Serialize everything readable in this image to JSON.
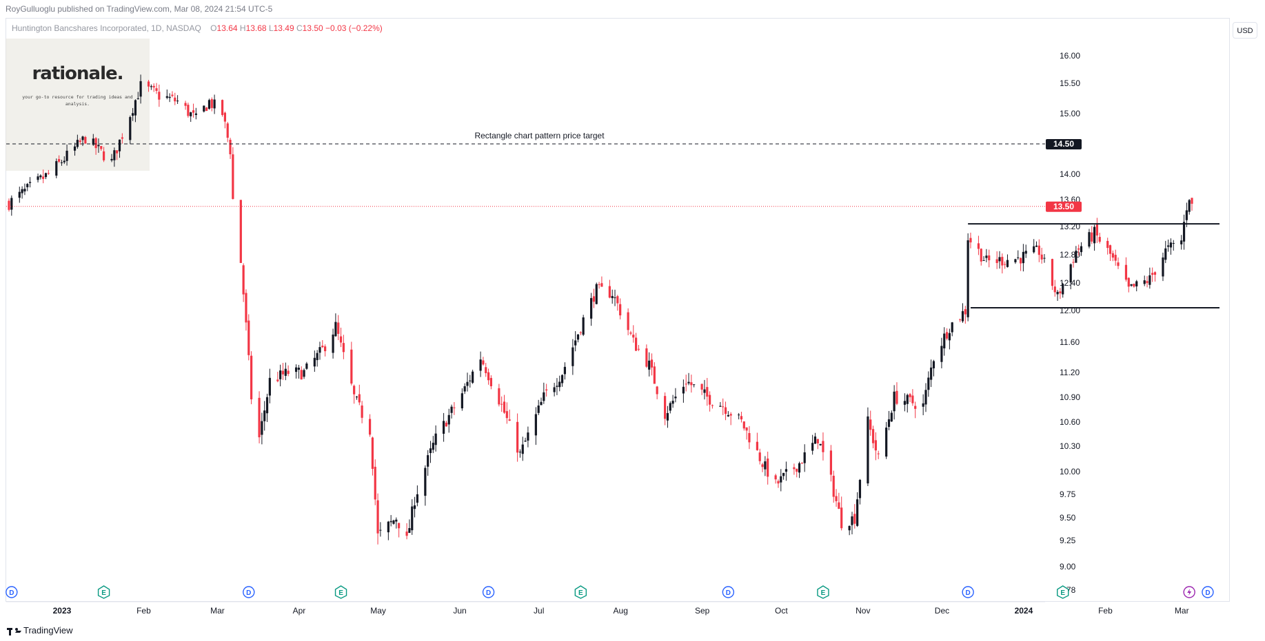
{
  "header": {
    "publisher": "RoyGulluoglu published on TradingView.com, Mar 08, 2024 21:54 UTC-5"
  },
  "legend": {
    "symbol": "Huntington Bancshares Incorporated, 1D, NASDAQ",
    "open_label": "O",
    "open": "13.64",
    "high_label": "H",
    "high": "13.68",
    "low_label": "L",
    "low": "13.49",
    "close_label": "C",
    "close": "13.50",
    "change": "−0.03 (−0.22%)"
  },
  "watermark": {
    "title": "rationale.",
    "subtitle": "your go-to resource for trading ideas and analysis."
  },
  "currency": "USD",
  "footer": {
    "brand": "TradingView"
  },
  "colors": {
    "up": "#131722",
    "down": "#f23645",
    "target_badge": "#131722",
    "price_badge": "#f23645",
    "event_icon": "#2962ff",
    "earnings_icon": "#089981"
  },
  "chart_data": {
    "type": "candlestick",
    "title": "",
    "xlabel": "",
    "ylabel": "",
    "ylim": [
      8.7,
      16.2
    ],
    "y_ticks": [
      "16.00",
      "15.50",
      "15.00",
      "14.50",
      "14.00",
      "13.60",
      "13.20",
      "12.80",
      "12.40",
      "12.00",
      "11.60",
      "11.20",
      "10.90",
      "10.60",
      "10.30",
      "10.00",
      "9.75",
      "9.50",
      "9.25",
      "9.00",
      "8.78"
    ],
    "x_ticks": [
      "2023",
      "Feb",
      "Mar",
      "Apr",
      "May",
      "Jun",
      "Jul",
      "Aug",
      "Sep",
      "Oct",
      "Nov",
      "Dec",
      "2024",
      "Feb",
      "Mar"
    ],
    "grid": false,
    "annotations": [
      {
        "type": "horizontal_line",
        "label": "Rectangle chart pattern price target",
        "value": 14.5,
        "badge": "14.50"
      },
      {
        "type": "last_price",
        "value": 13.5,
        "badge": "13.50"
      },
      {
        "type": "rectangle_top",
        "value": 13.24,
        "from": "2023-12-14",
        "to": "2024-03-08"
      },
      {
        "type": "rectangle_bottom",
        "value": 12.04,
        "from": "2023-12-15",
        "to": "2024-03-08"
      }
    ],
    "events": [
      {
        "kind": "D",
        "date": "2022-12-16"
      },
      {
        "kind": "E",
        "date": "2023-01-20"
      },
      {
        "kind": "D",
        "date": "2023-03-16"
      },
      {
        "kind": "E",
        "date": "2023-04-20"
      },
      {
        "kind": "D",
        "date": "2023-06-15"
      },
      {
        "kind": "E",
        "date": "2023-07-20"
      },
      {
        "kind": "D",
        "date": "2023-09-14"
      },
      {
        "kind": "E",
        "date": "2023-10-20"
      },
      {
        "kind": "D",
        "date": "2023-12-14"
      },
      {
        "kind": "E",
        "date": "2024-01-19"
      },
      {
        "kind": "S",
        "date": "2024-03-07"
      },
      {
        "kind": "D",
        "date": "2024-03-14"
      }
    ],
    "series": [
      {
        "name": "",
        "waypoints": [
          [
            "2022-12-15",
            13.55
          ],
          [
            "2022-12-30",
            14.0
          ],
          [
            "2023-01-13",
            14.6
          ],
          [
            "2023-01-23",
            14.2
          ],
          [
            "2023-02-03",
            15.45
          ],
          [
            "2023-02-10",
            15.3
          ],
          [
            "2023-02-17",
            15.2
          ],
          [
            "2023-02-24",
            14.9
          ],
          [
            "2023-03-01",
            15.2
          ],
          [
            "2023-03-06",
            15.0
          ],
          [
            "2023-03-09",
            14.4
          ],
          [
            "2023-03-10",
            13.6
          ],
          [
            "2023-03-13",
            12.7
          ],
          [
            "2023-03-17",
            10.9
          ],
          [
            "2023-03-20",
            10.4
          ],
          [
            "2023-03-24",
            11.1
          ],
          [
            "2023-03-31",
            11.2
          ],
          [
            "2023-04-06",
            11.2
          ],
          [
            "2023-04-13",
            11.5
          ],
          [
            "2023-04-18",
            11.8
          ],
          [
            "2023-04-25",
            10.9
          ],
          [
            "2023-05-01",
            10.5
          ],
          [
            "2023-05-04",
            9.3
          ],
          [
            "2023-05-11",
            9.5
          ],
          [
            "2023-05-15",
            9.25
          ],
          [
            "2023-05-18",
            9.7
          ],
          [
            "2023-05-26",
            10.4
          ],
          [
            "2023-06-06",
            11.0
          ],
          [
            "2023-06-12",
            11.4
          ],
          [
            "2023-06-20",
            10.8
          ],
          [
            "2023-06-27",
            10.2
          ],
          [
            "2023-07-06",
            10.9
          ],
          [
            "2023-07-13",
            11.2
          ],
          [
            "2023-07-20",
            11.8
          ],
          [
            "2023-07-26",
            12.3
          ],
          [
            "2023-08-01",
            12.25
          ],
          [
            "2023-08-04",
            12.0
          ],
          [
            "2023-08-09",
            11.6
          ],
          [
            "2023-08-15",
            11.3
          ],
          [
            "2023-08-21",
            10.7
          ],
          [
            "2023-08-29",
            11.1
          ],
          [
            "2023-09-06",
            10.9
          ],
          [
            "2023-09-12",
            10.8
          ],
          [
            "2023-09-19",
            10.6
          ],
          [
            "2023-09-27",
            10.1
          ],
          [
            "2023-10-02",
            9.85
          ],
          [
            "2023-10-11",
            10.1
          ],
          [
            "2023-10-18",
            10.4
          ],
          [
            "2023-10-23",
            9.9
          ],
          [
            "2023-10-27",
            9.45
          ],
          [
            "2023-11-01",
            9.5
          ],
          [
            "2023-11-06",
            10.6
          ],
          [
            "2023-11-10",
            10.15
          ],
          [
            "2023-11-16",
            10.9
          ],
          [
            "2023-11-27",
            10.8
          ],
          [
            "2023-12-01",
            11.4
          ],
          [
            "2023-12-07",
            11.8
          ],
          [
            "2023-12-13",
            12.0
          ],
          [
            "2023-12-14",
            13.05
          ],
          [
            "2023-12-21",
            12.7
          ],
          [
            "2024-01-02",
            12.75
          ],
          [
            "2024-01-10",
            12.85
          ],
          [
            "2024-01-17",
            12.2
          ],
          [
            "2024-01-24",
            12.85
          ],
          [
            "2024-01-31",
            13.1
          ],
          [
            "2024-02-06",
            12.8
          ],
          [
            "2024-02-13",
            12.3
          ],
          [
            "2024-02-21",
            12.45
          ],
          [
            "2024-02-27",
            12.85
          ],
          [
            "2024-03-04",
            13.0
          ],
          [
            "2024-03-06",
            13.5
          ],
          [
            "2024-03-07",
            13.66
          ],
          [
            "2024-03-08",
            13.5
          ]
        ]
      }
    ]
  }
}
